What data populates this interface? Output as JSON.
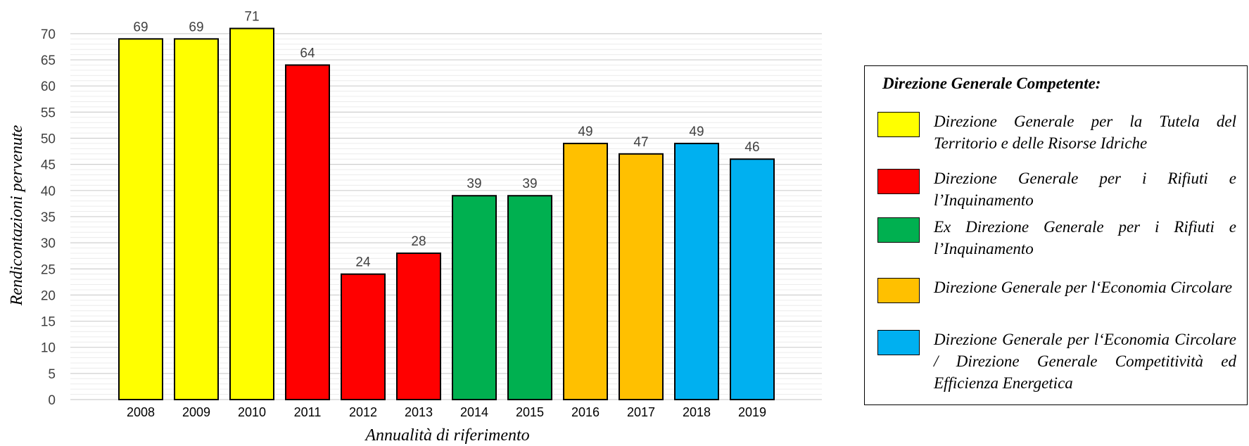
{
  "chart_data": {
    "type": "bar",
    "categories": [
      "2008",
      "2009",
      "2010",
      "2011",
      "2012",
      "2013",
      "2014",
      "2015",
      "2016",
      "2017",
      "2018",
      "2019"
    ],
    "values": [
      69,
      69,
      71,
      64,
      24,
      28,
      39,
      39,
      49,
      47,
      49,
      46
    ],
    "bar_colors": [
      "#FFFF00",
      "#FFFF00",
      "#FFFF00",
      "#FF0000",
      "#FF0000",
      "#FF0000",
      "#00B050",
      "#00B050",
      "#FFC000",
      "#FFC000",
      "#00B0F0",
      "#00B0F0"
    ],
    "title": "",
    "xlabel": "Annualità di riferimento",
    "ylabel": "Rendicontazioni pervenute",
    "ylim": [
      0,
      70
    ],
    "yticks": [
      0,
      5,
      10,
      15,
      20,
      25,
      30,
      35,
      40,
      45,
      50,
      55,
      60,
      65,
      70
    ],
    "grid": true,
    "legend_placement": "right",
    "legend": {
      "title": "Direzione Generale Competente:",
      "items": [
        {
          "label": "Direzione Generale per la Tutela del Territorio e delle Risorse Idriche",
          "color": "#FFFF00"
        },
        {
          "label": "Direzione Generale per i Rifiuti e l’Inquinamento",
          "color": "#FF0000"
        },
        {
          "label": "Ex Direzione Generale per i Rifiuti e l’Inquinamento",
          "color": "#00B050"
        },
        {
          "label": "Direzione Generale per l‘Economia Circolare",
          "color": "#FFC000"
        },
        {
          "label": "Direzione Generale per l‘Economia Circolare / Direzione Generale Competitività ed Efficienza Energetica",
          "color": "#00B0F0"
        }
      ]
    }
  }
}
